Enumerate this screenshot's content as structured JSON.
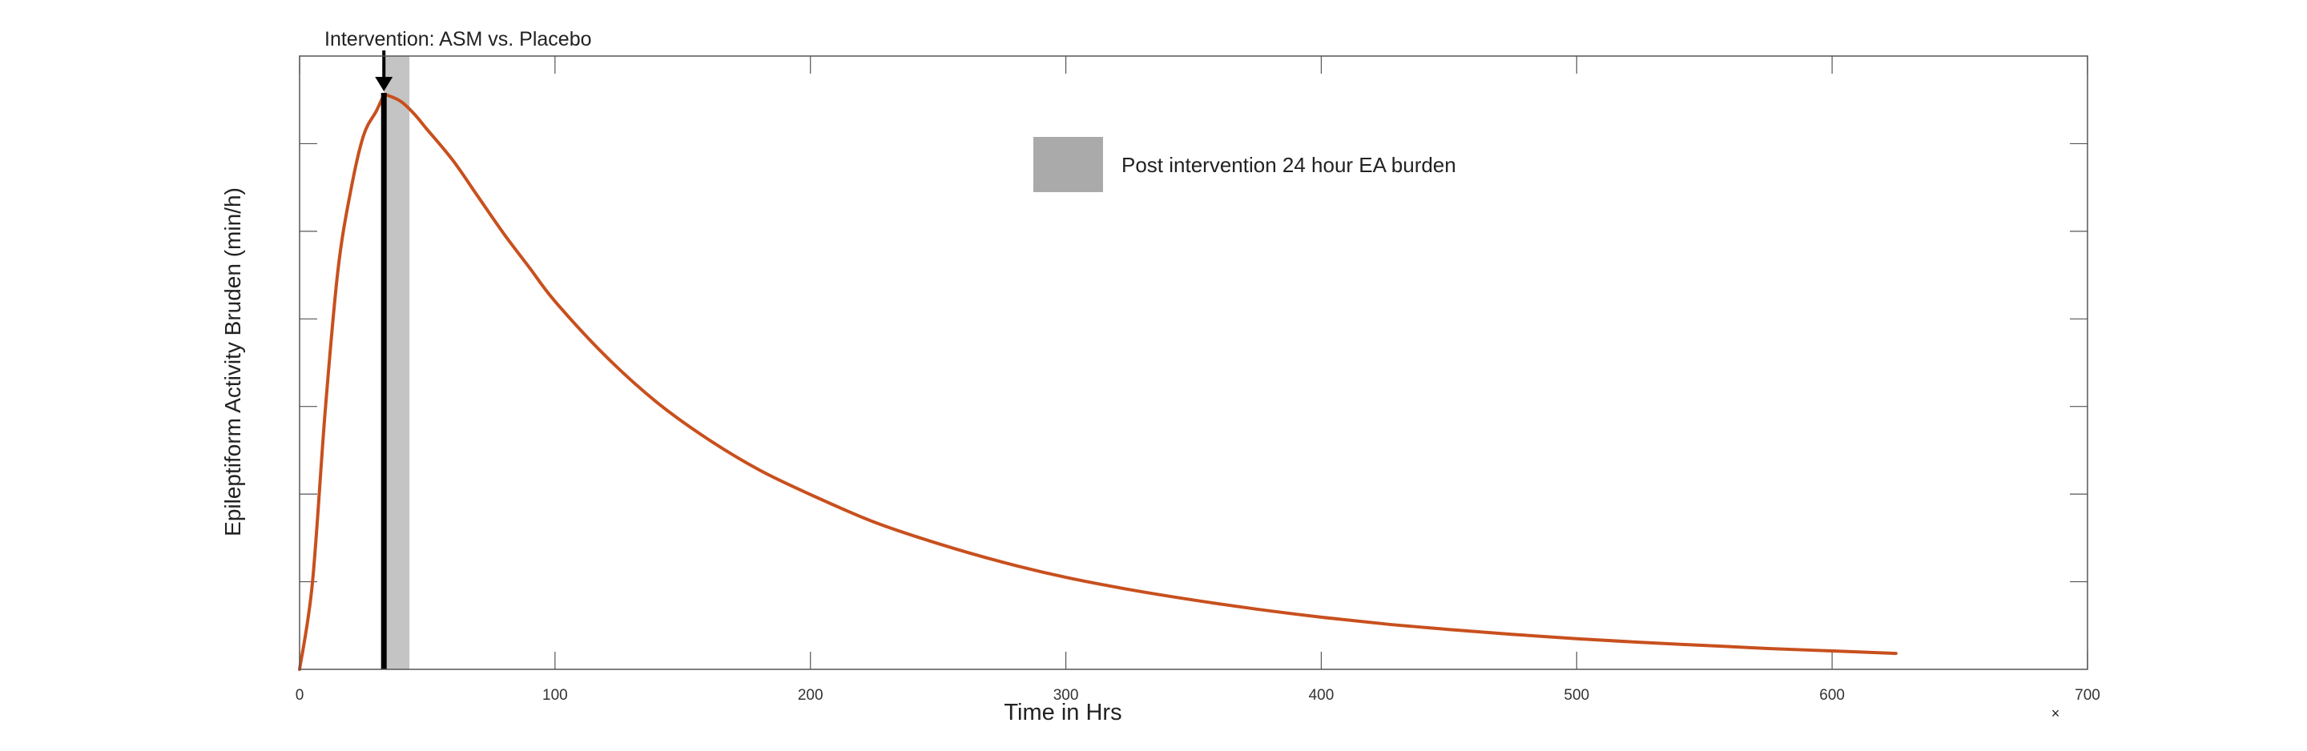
{
  "chart_data": {
    "type": "line",
    "title": "",
    "xlabel": "Time in Hrs",
    "ylabel": "Epileptiform Activity Bruden (min/h)",
    "xlim": [
      0,
      700
    ],
    "ylim": [
      0,
      1
    ],
    "xticks": [
      0,
      100,
      200,
      300,
      400,
      500,
      600,
      700
    ],
    "yticks": [
      0.1429,
      0.2857,
      0.4286,
      0.5714,
      0.7143,
      0.8571
    ],
    "y_tick_labels_visible": false,
    "grid": false,
    "series_color": "#c8501e",
    "shade_color": "#c4c4c4",
    "intervention_hours": 33,
    "shade_range": [
      33,
      43
    ],
    "series": [
      {
        "x": [
          0,
          5,
          10,
          15,
          20,
          25,
          30,
          33,
          35,
          40,
          45,
          50,
          60,
          70,
          80,
          90,
          100,
          120,
          140,
          160,
          180,
          200,
          225,
          250,
          275,
          300,
          325,
          350,
          375,
          400,
          425,
          450,
          475,
          500,
          525,
          550,
          575,
          600,
          625
        ],
        "y": [
          0.0,
          0.14,
          0.42,
          0.65,
          0.78,
          0.87,
          0.91,
          0.935,
          0.935,
          0.925,
          0.905,
          0.88,
          0.83,
          0.77,
          0.71,
          0.655,
          0.6,
          0.51,
          0.435,
          0.375,
          0.325,
          0.285,
          0.24,
          0.205,
          0.175,
          0.15,
          0.13,
          0.113,
          0.098,
          0.085,
          0.074,
          0.065,
          0.057,
          0.05,
          0.044,
          0.039,
          0.034,
          0.03,
          0.026
        ]
      }
    ],
    "annotations": {
      "intervention_label": "Intervention: ASM vs. Placebo",
      "shade_legend": "Post intervention 24 hour EA burden",
      "corner_mark": "×"
    }
  }
}
